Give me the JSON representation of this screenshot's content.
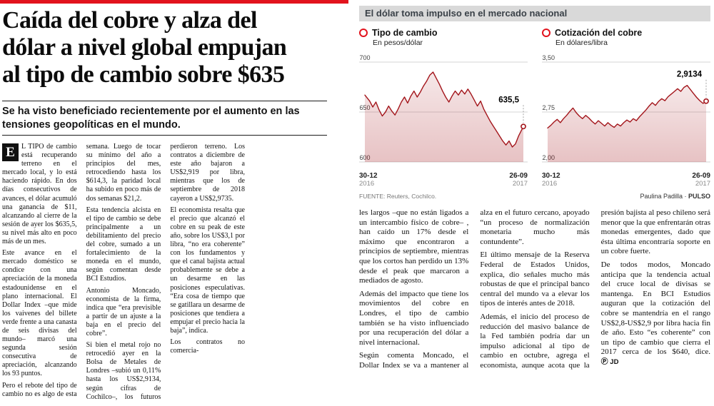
{
  "colors": {
    "accent": "#e2131d",
    "line": "#a3151b",
    "grid": "#c9c9c9",
    "header_bg": "#d9d9d9"
  },
  "article": {
    "headline_lines": [
      "Caída del cobre y alza del",
      "dólar a nivel global empujan",
      "al tipo de cambio sobre $635"
    ],
    "deck": "Se ha visto beneficiado recientemente por el aumento en las tensiones geopolíticas en el mundo.",
    "dropcap": "E",
    "left_paragraphs": [
      "L TIPO de cambio está recuperando terreno en el mercado local, y lo está haciendo rápido. En dos días consecutivos de avances, el dólar acumuló una ganancia de $11, alcanzando al cierre de la sesión de ayer los $635,5, su nivel más alto en poco más de un mes.",
      "Este avance en el mercado doméstico se condice con una apreciación de la moneda estadounidense en el plano internacional. El Dollar Index –que mide los vaivenes del billete verde frente a una canasta de seis divisas del mundo– marcó una segunda sesión consecutiva de apreciación, alcanzando los 93 puntos.",
      "Pero el rebote del tipo de cambio no es algo de esta semana. Luego de tocar su mínimo del año a principios del mes, retrocediendo hasta los $614,3, la paridad local ha subido en poco más de dos semanas $21,2.",
      "Esta tendencia alcista en el tipo de cambio se debe principalmente a un debilitamiento del precio del cobre, sumado a un fortalecimiento de la moneda en el mundo, según comentan desde BCI Estudios.",
      "Antonio Moncado, economista de la firma, indica que “era previsible a partir de un ajuste a la baja en el precio del cobre”.",
      "Si bien el metal rojo no retrocedió ayer en la Bolsa de Metales de Londres –subió un 0,11% hasta los US$2,9134, según cifras de Cochilco–, los futuros perdieron terreno. Los contratos a diciembre de este año bajaron a US$2,919 por libra, mientras que los de septiembre de 2018 cayeron a US$2,9735.",
      "El economista resalta que el precio que alcanzó el cobre en su peak de este año, sobre los US$3,1 por libra, “no era coherente” con los fundamentos y que el canal bajista actual probablemente se debe a un desarme en las posiciones especulativas. “Era cosa de tiempo que se gatillara un desarme de posiciones que tendiera a empujar el precio hacia la baja”, indica.",
      "Los contratos no comercia-"
    ],
    "right_paragraphs": [
      "les largos –que no están ligados a un intercambio físico de cobre– , han caído un 17% desde el máximo que encontraron a principios de septiembre, mientras que los cortos han perdido un 13% desde el peak que marcaron a mediados de agosto.",
      "Además del impacto que tiene los movimientos del cobre en Londres, el tipo de cambio también se ha visto influenciado por una recuperación del dólar a nivel internacional.",
      "Según comenta Moncado, el Dollar Index se va a mantener al alza en el futuro cercano, apoyado “un proceso de normalización monetaria mucho más contundente”.",
      "El último mensaje de la Reserva Federal de Estados Unidos, explica, dio señales mucho más robustas de que el principal banco central del mundo va a elevar los tipos de interés antes de 2018.",
      "Además, el inicio del proceso de reducción del masivo balance de la Fed también podría dar un impulso adicional al tipo de cambio en octubre, agrega el economista, aunque acota que la presión bajista al peso chileno será menor que la que enfrentarán otras monedas emergentes, dado que ésta última encontraría soporte en un cobre fuerte.",
      "De todos modos, Moncado anticipa que la tendencia actual del cruce local de divisas se mantenga. En BCI Estudios auguran que la cotización del cobre se mantendría en el rango US$2,8-US$2,9 por libra hacia fin de año. Esto “es coherente” con un tipo de cambio que cierra el 2017 cerca de los $640, dice."
    ],
    "end_mark": {
      "symbol": "Ⓟ",
      "initials": "JD"
    }
  },
  "infographic": {
    "title": "El dólar toma impulso en el mercado nacional",
    "source": "FUENTE: Reuters, Cochilco.",
    "credit": {
      "name": "Paulina Padilla",
      "sep": " · ",
      "brand": "PULSO"
    }
  },
  "chart_data": [
    {
      "type": "line",
      "title": "Tipo de cambio",
      "unit": "En pesos/dólar",
      "ylim": [
        600,
        700
      ],
      "yticks": [
        {
          "label": "700",
          "value": 700
        },
        {
          "label": "650",
          "value": 650
        },
        {
          "label": "600",
          "value": 600
        }
      ],
      "xticks": [
        {
          "top": "30-12",
          "bottom": "2016"
        },
        {
          "top": "26-09",
          "bottom": "2017"
        }
      ],
      "end_label": "635,5",
      "points": [
        [
          0,
          667
        ],
        [
          0.03,
          661
        ],
        [
          0.05,
          655
        ],
        [
          0.07,
          660
        ],
        [
          0.09,
          652
        ],
        [
          0.11,
          646
        ],
        [
          0.13,
          650
        ],
        [
          0.15,
          656
        ],
        [
          0.17,
          651
        ],
        [
          0.19,
          647
        ],
        [
          0.21,
          653
        ],
        [
          0.23,
          660
        ],
        [
          0.25,
          665
        ],
        [
          0.27,
          659
        ],
        [
          0.29,
          666
        ],
        [
          0.31,
          671
        ],
        [
          0.33,
          665
        ],
        [
          0.35,
          670
        ],
        [
          0.37,
          676
        ],
        [
          0.39,
          681
        ],
        [
          0.41,
          687
        ],
        [
          0.43,
          690
        ],
        [
          0.45,
          684
        ],
        [
          0.47,
          678
        ],
        [
          0.49,
          671
        ],
        [
          0.51,
          665
        ],
        [
          0.53,
          660
        ],
        [
          0.55,
          666
        ],
        [
          0.57,
          671
        ],
        [
          0.59,
          667
        ],
        [
          0.61,
          672
        ],
        [
          0.63,
          668
        ],
        [
          0.65,
          673
        ],
        [
          0.67,
          668
        ],
        [
          0.69,
          662
        ],
        [
          0.71,
          656
        ],
        [
          0.73,
          661
        ],
        [
          0.75,
          653
        ],
        [
          0.77,
          647
        ],
        [
          0.79,
          641
        ],
        [
          0.81,
          636
        ],
        [
          0.83,
          631
        ],
        [
          0.85,
          626
        ],
        [
          0.87,
          621
        ],
        [
          0.89,
          617
        ],
        [
          0.91,
          621
        ],
        [
          0.93,
          615
        ],
        [
          0.95,
          618
        ],
        [
          0.97,
          626
        ],
        [
          1,
          635.5
        ]
      ]
    },
    {
      "type": "line",
      "title": "Cotización del cobre",
      "unit": "En dólares/libra",
      "ylim": [
        2.0,
        3.5
      ],
      "yticks": [
        {
          "label": "3,50",
          "value": 3.5
        },
        {
          "label": "2,75",
          "value": 2.75
        },
        {
          "label": "2,00",
          "value": 2.0
        }
      ],
      "xticks": [
        {
          "top": "30-12",
          "bottom": "2016"
        },
        {
          "top": "26-09",
          "bottom": "2017"
        }
      ],
      "end_label": "2,9134",
      "points": [
        [
          0,
          2.51
        ],
        [
          0.02,
          2.55
        ],
        [
          0.04,
          2.6
        ],
        [
          0.06,
          2.64
        ],
        [
          0.08,
          2.59
        ],
        [
          0.1,
          2.65
        ],
        [
          0.12,
          2.7
        ],
        [
          0.14,
          2.76
        ],
        [
          0.16,
          2.81
        ],
        [
          0.18,
          2.74
        ],
        [
          0.2,
          2.69
        ],
        [
          0.22,
          2.65
        ],
        [
          0.24,
          2.7
        ],
        [
          0.26,
          2.66
        ],
        [
          0.28,
          2.61
        ],
        [
          0.3,
          2.57
        ],
        [
          0.32,
          2.62
        ],
        [
          0.34,
          2.58
        ],
        [
          0.36,
          2.54
        ],
        [
          0.38,
          2.59
        ],
        [
          0.4,
          2.55
        ],
        [
          0.42,
          2.52
        ],
        [
          0.44,
          2.57
        ],
        [
          0.46,
          2.54
        ],
        [
          0.48,
          2.59
        ],
        [
          0.5,
          2.63
        ],
        [
          0.52,
          2.6
        ],
        [
          0.54,
          2.65
        ],
        [
          0.56,
          2.62
        ],
        [
          0.58,
          2.68
        ],
        [
          0.6,
          2.73
        ],
        [
          0.62,
          2.78
        ],
        [
          0.64,
          2.84
        ],
        [
          0.66,
          2.89
        ],
        [
          0.68,
          2.85
        ],
        [
          0.7,
          2.91
        ],
        [
          0.72,
          2.95
        ],
        [
          0.74,
          2.92
        ],
        [
          0.76,
          2.98
        ],
        [
          0.78,
          3.02
        ],
        [
          0.8,
          3.06
        ],
        [
          0.82,
          3.1
        ],
        [
          0.84,
          3.06
        ],
        [
          0.86,
          3.12
        ],
        [
          0.88,
          3.15
        ],
        [
          0.9,
          3.09
        ],
        [
          0.92,
          3.03
        ],
        [
          0.94,
          2.97
        ],
        [
          0.96,
          2.92
        ],
        [
          0.98,
          2.88
        ],
        [
          1,
          2.9134
        ]
      ]
    }
  ]
}
